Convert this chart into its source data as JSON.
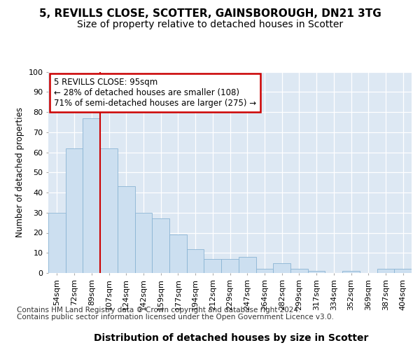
{
  "title1": "5, REVILLS CLOSE, SCOTTER, GAINSBOROUGH, DN21 3TG",
  "title2": "Size of property relative to detached houses in Scotter",
  "xlabel": "Distribution of detached houses by size in Scotter",
  "ylabel": "Number of detached properties",
  "categories": [
    "54sqm",
    "72sqm",
    "89sqm",
    "107sqm",
    "124sqm",
    "142sqm",
    "159sqm",
    "177sqm",
    "194sqm",
    "212sqm",
    "229sqm",
    "247sqm",
    "264sqm",
    "282sqm",
    "299sqm",
    "317sqm",
    "334sqm",
    "352sqm",
    "369sqm",
    "387sqm",
    "404sqm"
  ],
  "values": [
    30,
    62,
    77,
    62,
    43,
    30,
    27,
    19,
    12,
    7,
    7,
    8,
    2,
    5,
    2,
    1,
    0,
    1,
    0,
    2,
    2
  ],
  "bar_color": "#ccdff0",
  "bar_edge_color": "#8ab4d4",
  "vline_bar_index": 2,
  "vline_color": "#cc0000",
  "annotation_text": "5 REVILLS CLOSE: 95sqm\n← 28% of detached houses are smaller (108)\n71% of semi-detached houses are larger (275) →",
  "annotation_box_color": "#ffffff",
  "annotation_edge_color": "#cc0000",
  "ylim": [
    0,
    100
  ],
  "yticks": [
    0,
    10,
    20,
    30,
    40,
    50,
    60,
    70,
    80,
    90,
    100
  ],
  "footer1": "Contains HM Land Registry data © Crown copyright and database right 2024.",
  "footer2": "Contains public sector information licensed under the Open Government Licence v3.0.",
  "bg_color": "#dde8f3",
  "fig_bg_color": "#ffffff",
  "title1_fontsize": 11,
  "title2_fontsize": 10,
  "xlabel_fontsize": 10,
  "ylabel_fontsize": 8.5,
  "tick_fontsize": 8,
  "annotation_fontsize": 8.5,
  "footer_fontsize": 7.5
}
